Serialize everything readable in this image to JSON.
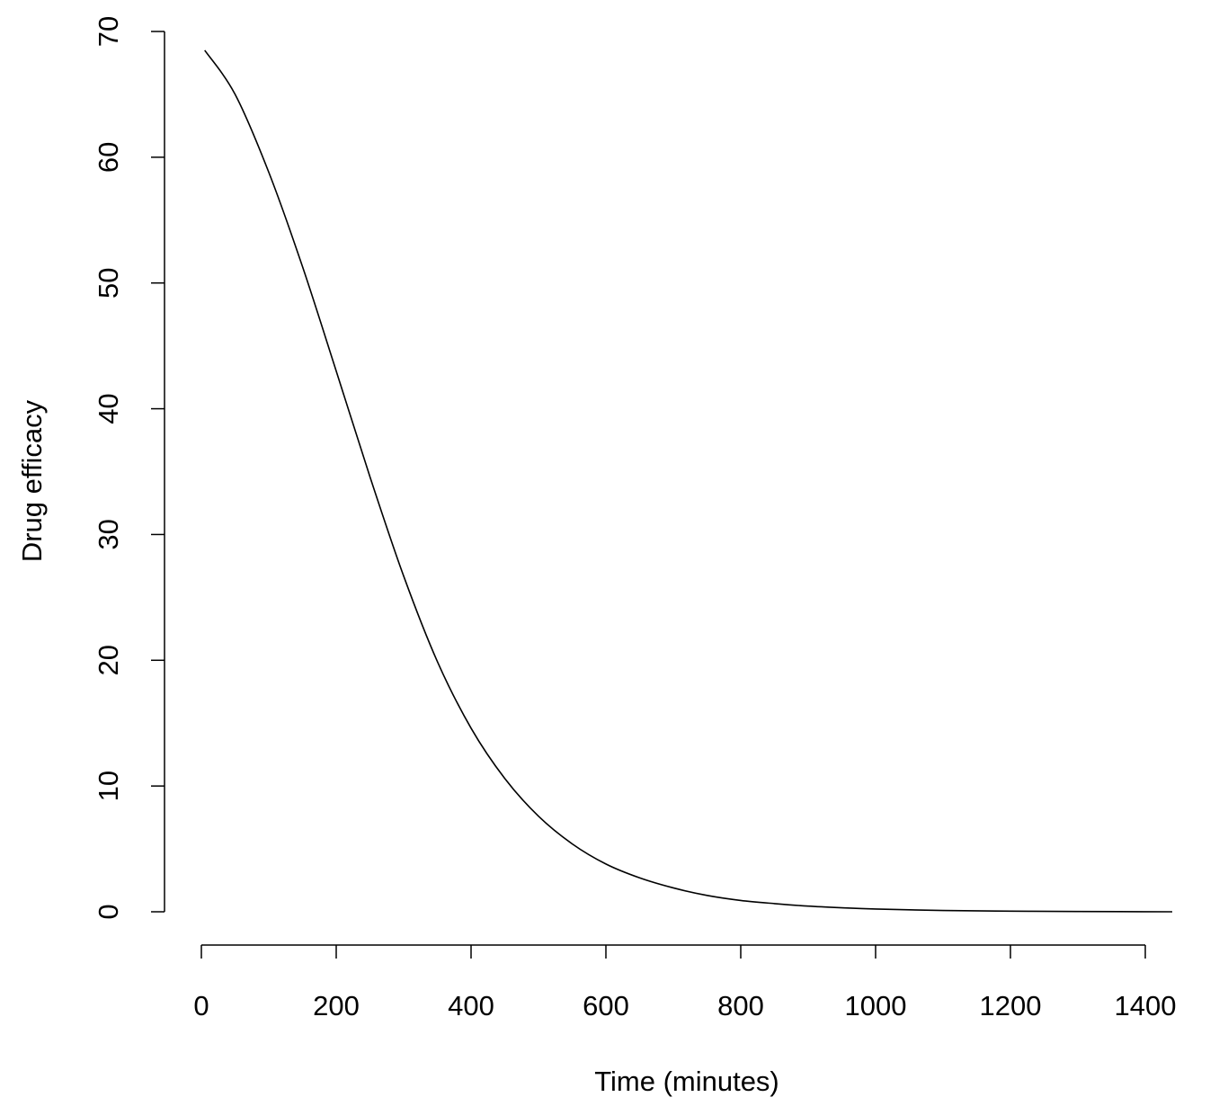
{
  "chart_data": {
    "type": "line",
    "title": "",
    "xlabel": "Time (minutes)",
    "ylabel": "Drug efficacy",
    "xlim": [
      0,
      1440
    ],
    "ylim": [
      0,
      70
    ],
    "x_ticks": [
      0,
      200,
      400,
      600,
      800,
      1000,
      1200,
      1400
    ],
    "y_ticks": [
      0,
      10,
      20,
      30,
      40,
      50,
      60,
      70
    ],
    "x_tick_labels": [
      "0",
      "200",
      "400",
      "600",
      "800",
      "1000",
      "1200",
      "1400"
    ],
    "y_tick_labels": [
      "0",
      "10",
      "20",
      "30",
      "40",
      "50",
      "60",
      "70"
    ],
    "grid": false,
    "legend": "none",
    "series": [
      {
        "color": "#000000",
        "x": [
          5,
          50,
          100,
          150,
          200,
          250,
          300,
          350,
          400,
          450,
          500,
          550,
          600,
          650,
          700,
          750,
          800,
          850,
          900,
          950,
          1000,
          1100,
          1200,
          1300,
          1440
        ],
        "y": [
          68.5,
          65.0,
          58.8,
          51.3,
          43.0,
          34.6,
          26.7,
          19.9,
          14.6,
          10.6,
          7.6,
          5.4,
          3.8,
          2.7,
          1.9,
          1.3,
          0.9,
          0.65,
          0.45,
          0.32,
          0.22,
          0.1,
          0.05,
          0.02,
          0.0
        ]
      }
    ]
  }
}
